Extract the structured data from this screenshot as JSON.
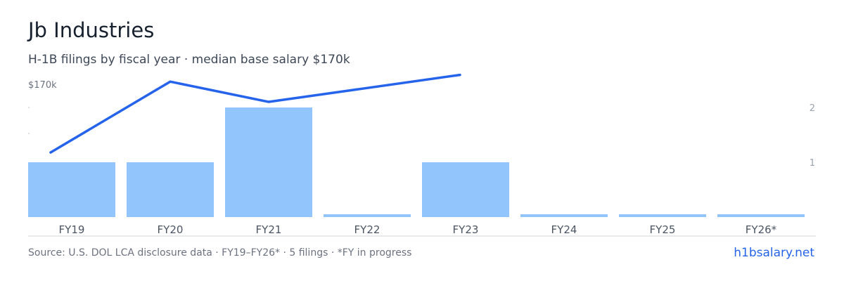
{
  "header": {
    "title": "Jb Industries",
    "subtitle": "H-1B filings by fiscal year · median base salary $170k"
  },
  "footer": {
    "source": "Source: U.S. DOL LCA disclosure data · FY19–FY26* · 5 filings · *FY in progress",
    "brand": "h1bsalary.net"
  },
  "colors": {
    "bar": "#93c5fd",
    "line": "#2563eb",
    "axis": "#d1d5db"
  },
  "chart_data": {
    "type": "bar",
    "categories": [
      "FY19",
      "FY20",
      "FY21",
      "FY22",
      "FY23",
      "FY24",
      "FY25",
      "FY26*"
    ],
    "series": [
      {
        "type": "bar",
        "axis": "right",
        "values": [
          1,
          1,
          2,
          0,
          1,
          0,
          0,
          0
        ]
      },
      {
        "type": "line",
        "axis": "left",
        "values": [
          150000,
          171000,
          165000,
          null,
          173000,
          null,
          null,
          null
        ]
      }
    ],
    "left_axis": {
      "tick_labels": [
        "$170k"
      ],
      "label_value": 170000
    },
    "right_axis": {
      "ticks": [
        1,
        2
      ],
      "ylim": [
        0,
        2
      ]
    },
    "grid": false
  }
}
